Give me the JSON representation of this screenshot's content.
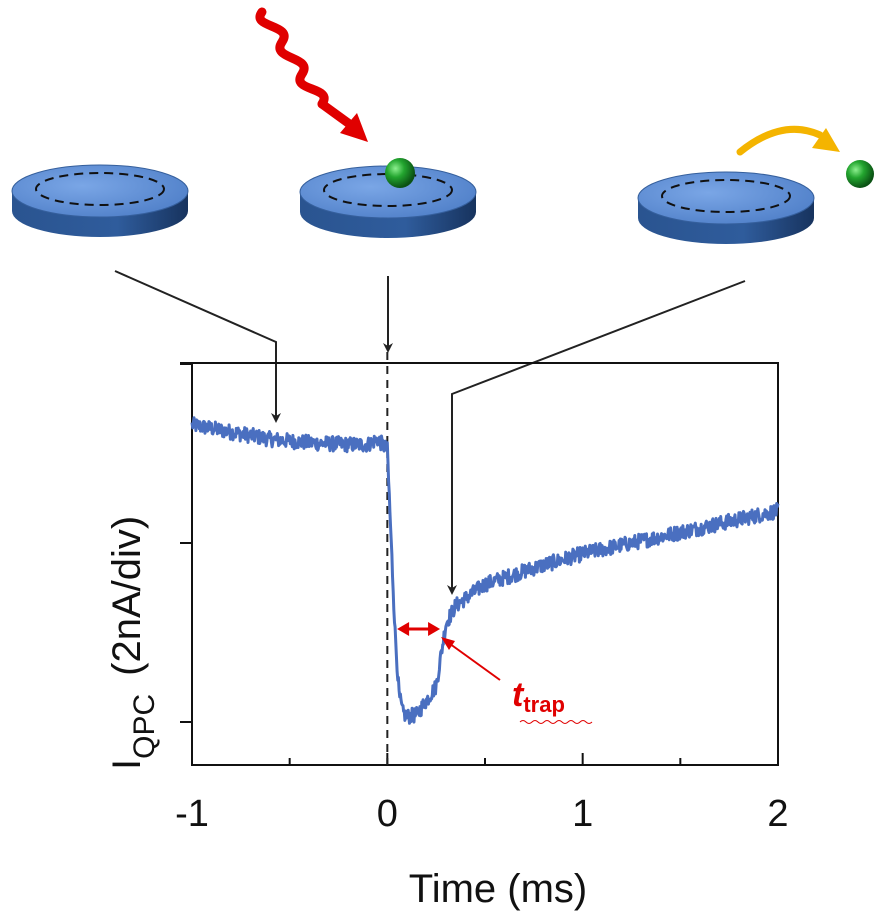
{
  "chart_data": {
    "type": "line",
    "xlabel": "Time (ms)",
    "ylabel": {
      "main": "I",
      "sub": "QPC",
      "unit": "(2nA/div)"
    },
    "x_ticks": [
      "-1",
      "0",
      "1",
      "2"
    ],
    "xlim": [
      -1,
      2
    ],
    "ylim": [
      0,
      2.25
    ],
    "y_divisions": [
      0,
      1,
      2
    ],
    "annotation": {
      "label_main": "t",
      "label_sub": "trap",
      "color": "#e00000"
    },
    "series": [
      {
        "color": "#4a6fc0",
        "x": [
          -1.0,
          -0.8,
          -0.6,
          -0.4,
          -0.2,
          -0.1,
          -0.05,
          0.0,
          0.02,
          0.04,
          0.06,
          0.08,
          0.1,
          0.15,
          0.2,
          0.25,
          0.3,
          0.35,
          0.5,
          0.75,
          1.0,
          1.25,
          1.5,
          1.75,
          2.0
        ],
        "y": [
          1.66,
          1.62,
          1.58,
          1.56,
          1.55,
          1.55,
          1.58,
          1.52,
          1.0,
          0.5,
          0.15,
          0.05,
          0.03,
          0.04,
          0.12,
          0.2,
          0.55,
          0.65,
          0.77,
          0.86,
          0.94,
          1.0,
          1.06,
          1.12,
          1.18
        ]
      }
    ]
  },
  "colors": {
    "trace": "#4a6fc0",
    "disk_top": "#5b8fd6",
    "disk_side": "#274e87",
    "photon": "#e00000",
    "ejection_arrow": "#f4b400",
    "particle": "#1e9e2a",
    "annotation": "#e00000"
  }
}
